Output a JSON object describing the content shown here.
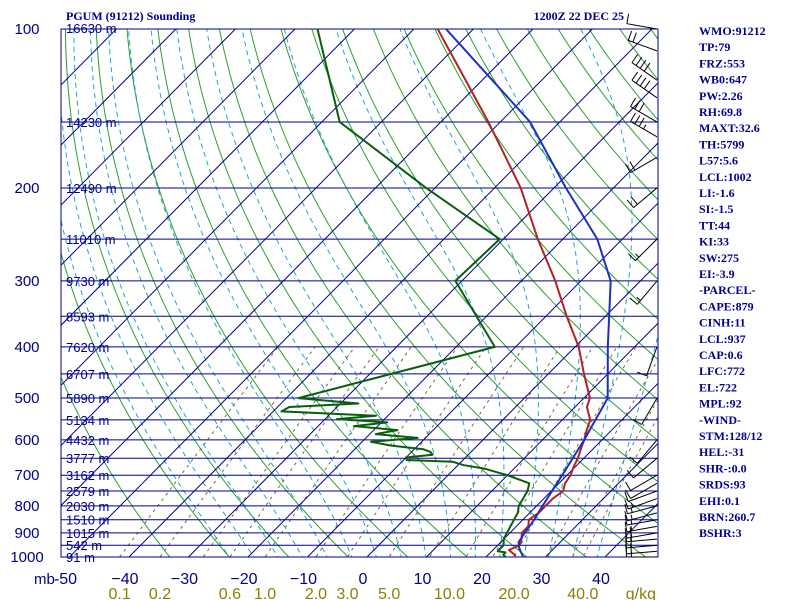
{
  "header": {
    "station": "PGUM (91212) Sounding",
    "time": "1200Z 22 DEC 25"
  },
  "colors": {
    "isobar": "#00008b",
    "isotherm": "#00008b",
    "dry_adiabat": "#2ca02c",
    "moist_adiabat": "#1fa6c8",
    "mixing_ratio": "#7a6a3a",
    "temperature": "#b22222",
    "dewpoint": "#0b5d0b",
    "parcel": "#1f2fbf",
    "wind": "#000000"
  },
  "chart_data": {
    "type": "skew-t",
    "title": "PGUM (91212) Sounding",
    "time": "1200Z 22 DEC 25",
    "pressure_range": [
      1000,
      100
    ],
    "temp_range": [
      -50,
      50
    ],
    "pressure_axis_unit": "mb",
    "mixing_ratio_unit": "g/kg",
    "pressure_ticks": [
      100,
      200,
      300,
      400,
      500,
      600,
      700,
      800,
      900,
      1000
    ],
    "temp_ticks": [
      -50,
      -40,
      -30,
      -20,
      -10,
      0,
      10,
      20,
      30,
      40
    ],
    "temp_tick_labels": [
      "-50",
      "−40",
      "−30",
      "−20",
      "−10",
      "0",
      "10",
      "20",
      "30",
      "40"
    ],
    "mixing_ratio_labels": [
      "0.1",
      "0.2",
      "0.6",
      "1.0",
      "2.0",
      "3.0",
      "5.0",
      "10.0",
      "20.0",
      "40.0"
    ],
    "mixing_ratio_values": [
      0.1,
      0.2,
      0.6,
      1.0,
      2.0,
      3.0,
      5.0,
      10.0,
      20.0,
      40.0
    ],
    "height_labels": [
      {
        "p": 100,
        "text": "16630 m"
      },
      {
        "p": 150,
        "text": "14230 m"
      },
      {
        "p": 200,
        "text": "12490 m"
      },
      {
        "p": 250,
        "text": "11010 m"
      },
      {
        "p": 300,
        "text": "9730 m"
      },
      {
        "p": 350,
        "text": "8593 m"
      },
      {
        "p": 400,
        "text": "7620 m"
      },
      {
        "p": 450,
        "text": "6707 m"
      },
      {
        "p": 500,
        "text": "5890 m"
      },
      {
        "p": 550,
        "text": "5134 m"
      },
      {
        "p": 600,
        "text": "4432 m"
      },
      {
        "p": 650,
        "text": "3777 m"
      },
      {
        "p": 700,
        "text": "3162 m"
      },
      {
        "p": 750,
        "text": "2579 m"
      },
      {
        "p": 800,
        "text": "2030 m"
      },
      {
        "p": 850,
        "text": "1510 m"
      },
      {
        "p": 900,
        "text": "1015 m"
      },
      {
        "p": 950,
        "text": "542 m"
      },
      {
        "p": 1000,
        "text": "91 m"
      }
    ],
    "series": [
      {
        "name": "Temperature",
        "key": "temperature",
        "points": [
          [
            1005,
            25.4
          ],
          [
            1000,
            25
          ],
          [
            990,
            24.4
          ],
          [
            970,
            22.7
          ],
          [
            950,
            23.7
          ],
          [
            925,
            23
          ],
          [
            900,
            22
          ],
          [
            875,
            22
          ],
          [
            850,
            21
          ],
          [
            825,
            21.5
          ],
          [
            800,
            21.5
          ],
          [
            775,
            21.5
          ],
          [
            750,
            22
          ],
          [
            725,
            21
          ],
          [
            700,
            20.6
          ],
          [
            675,
            19.7
          ],
          [
            650,
            19
          ],
          [
            625,
            18
          ],
          [
            600,
            17
          ],
          [
            575,
            15.8
          ],
          [
            550,
            14.7
          ],
          [
            520,
            12
          ],
          [
            500,
            11
          ],
          [
            450,
            6
          ],
          [
            400,
            0.6
          ],
          [
            350,
            -6.5
          ],
          [
            300,
            -14.3
          ],
          [
            250,
            -24.2
          ],
          [
            200,
            -35.6
          ],
          [
            150,
            -52
          ],
          [
            100,
            -76
          ]
        ]
      },
      {
        "name": "Dewpoint",
        "key": "dewpoint",
        "points": [
          [
            1005,
            24.2
          ],
          [
            1000,
            23.3
          ],
          [
            990,
            22.5
          ],
          [
            980,
            22.5
          ],
          [
            975,
            21
          ],
          [
            970,
            21
          ],
          [
            950,
            21
          ],
          [
            925,
            20
          ],
          [
            900,
            19.5
          ],
          [
            875,
            19
          ],
          [
            850,
            18.5
          ],
          [
            825,
            18
          ],
          [
            800,
            17
          ],
          [
            775,
            16.5
          ],
          [
            750,
            16
          ],
          [
            725,
            15
          ],
          [
            700,
            10
          ],
          [
            690,
            7.5
          ],
          [
            680,
            5
          ],
          [
            670,
            1
          ],
          [
            660,
            -1.5
          ],
          [
            655,
            -9.5
          ],
          [
            648,
            -10
          ],
          [
            640,
            -6
          ],
          [
            632,
            -6.9
          ],
          [
            625,
            -8.5
          ],
          [
            615,
            -14.6
          ],
          [
            605,
            -18.5
          ],
          [
            595,
            -11.3
          ],
          [
            585,
            -19
          ],
          [
            575,
            -16
          ],
          [
            565,
            -24
          ],
          [
            556,
            -19
          ],
          [
            548,
            -28
          ],
          [
            540,
            -22
          ],
          [
            530,
            -38.6
          ],
          [
            520,
            -38
          ],
          [
            512,
            -27
          ],
          [
            500,
            -38
          ],
          [
            400,
            -13.5
          ],
          [
            300,
            -31.1
          ],
          [
            250,
            -30.6
          ],
          [
            200,
            -51.5
          ],
          [
            150,
            -77
          ],
          [
            100,
            -96.2
          ]
        ]
      },
      {
        "name": "Parcel",
        "key": "parcel",
        "points": [
          [
            1005,
            26.5
          ],
          [
            960,
            24
          ],
          [
            937,
            23
          ],
          [
            900,
            22.5
          ],
          [
            850,
            21.9
          ],
          [
            800,
            21
          ],
          [
            700,
            19.2
          ],
          [
            600,
            17
          ],
          [
            500,
            14
          ],
          [
            400,
            5.5
          ],
          [
            300,
            -5
          ],
          [
            250,
            -14.2
          ],
          [
            200,
            -28
          ],
          [
            150,
            -45
          ],
          [
            100,
            -74.6
          ]
        ]
      }
    ],
    "wind_barbs": [
      {
        "p": 1000,
        "dir": 90,
        "spd": 15
      },
      {
        "p": 975,
        "dir": 85,
        "spd": 20
      },
      {
        "p": 950,
        "dir": 85,
        "spd": 20
      },
      {
        "p": 925,
        "dir": 85,
        "spd": 20
      },
      {
        "p": 900,
        "dir": 80,
        "spd": 20
      },
      {
        "p": 875,
        "dir": 80,
        "spd": 15
      },
      {
        "p": 850,
        "dir": 80,
        "spd": 15
      },
      {
        "p": 825,
        "dir": 75,
        "spd": 15
      },
      {
        "p": 800,
        "dir": 75,
        "spd": 15
      },
      {
        "p": 775,
        "dir": 70,
        "spd": 15
      },
      {
        "p": 750,
        "dir": 70,
        "spd": 10
      },
      {
        "p": 725,
        "dir": 60,
        "spd": 10
      },
      {
        "p": 700,
        "dir": 60,
        "spd": 10
      },
      {
        "p": 650,
        "dir": 50,
        "spd": 10
      },
      {
        "p": 600,
        "dir": 40,
        "spd": 10
      },
      {
        "p": 500,
        "dir": 30,
        "spd": 10
      },
      {
        "p": 400,
        "dir": 20,
        "spd": 10
      },
      {
        "p": 300,
        "dir": 40,
        "spd": 15
      },
      {
        "p": 250,
        "dir": 45,
        "spd": 15
      },
      {
        "p": 200,
        "dir": 50,
        "spd": 20
      },
      {
        "p": 175,
        "dir": 60,
        "spd": 20
      },
      {
        "p": 160,
        "dir": 120,
        "spd": 35
      },
      {
        "p": 150,
        "dir": 120,
        "spd": 30
      },
      {
        "p": 135,
        "dir": 125,
        "spd": 40
      },
      {
        "p": 125,
        "dir": 125,
        "spd": 40
      },
      {
        "p": 110,
        "dir": 110,
        "spd": 20
      },
      {
        "p": 100,
        "dir": 100,
        "spd": 10
      }
    ],
    "indices": [
      "WMO:91212",
      "TP:79",
      "FRZ:553",
      "WB0:647",
      "PW:2.26",
      "RH:69.8",
      "MAXT:32.6",
      "TH:5799",
      "L57:5.6",
      "LCL:1002",
      "LI:-1.6",
      "SI:-1.5",
      "TT:44",
      "KI:33",
      "SW:275",
      "EI:-3.9",
      "-PARCEL-",
      "CAPE:879",
      "CINH:11",
      "LCL:937",
      "CAP:0.6",
      "LFC:772",
      "EL:722",
      "MPL:92",
      "-WIND-",
      "STM:128/12",
      "HEL:-31",
      "SHR-:0.0",
      "SRDS:93",
      "EHI:0.1",
      "BRN:260.7",
      "BSHR:3"
    ]
  }
}
